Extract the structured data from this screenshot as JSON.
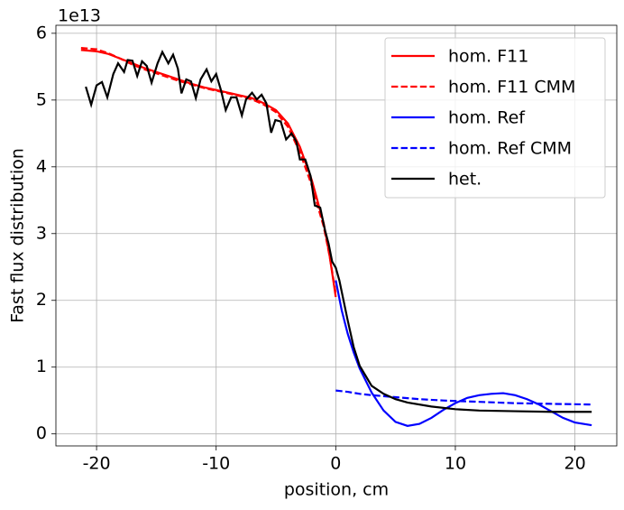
{
  "chart_data": {
    "type": "line",
    "xlabel": "position, cm",
    "ylabel": "Fast flux distribution",
    "offset_text": "1e13",
    "xlim": [
      -23.4,
      23.5
    ],
    "ylim": [
      -0.18,
      6.12
    ],
    "xticks": [
      -20,
      -10,
      0,
      10,
      20
    ],
    "yticks": [
      0,
      1,
      2,
      3,
      4,
      5,
      6
    ],
    "grid": true,
    "legend": "upper right",
    "series": [
      {
        "name": "hom. F11",
        "color": "#ff0000",
        "style": "solid",
        "x": [
          -21.3,
          -20,
          -19,
          -18,
          -17,
          -16,
          -15,
          -14,
          -13,
          -12,
          -11,
          -10,
          -9,
          -8,
          -7,
          -6,
          -5,
          -4,
          -3,
          -2,
          -1,
          -0.5,
          0
        ],
        "values": [
          5.75,
          5.73,
          5.69,
          5.62,
          5.55,
          5.48,
          5.42,
          5.36,
          5.3,
          5.24,
          5.19,
          5.15,
          5.11,
          5.07,
          5.03,
          4.95,
          4.85,
          4.65,
          4.3,
          3.8,
          3.15,
          2.65,
          2.05
        ]
      },
      {
        "name": "hom. F11 CMM",
        "color": "#ff0000",
        "style": "dashed",
        "x": [
          -21.3,
          -20,
          -19,
          -18,
          -17,
          -16,
          -15,
          -14,
          -13,
          -12,
          -11,
          -10,
          -9,
          -8,
          -7,
          -6,
          -5,
          -4,
          -3,
          -2,
          -1,
          -0.5,
          0
        ],
        "values": [
          5.78,
          5.76,
          5.7,
          5.62,
          5.53,
          5.46,
          5.4,
          5.34,
          5.28,
          5.23,
          5.18,
          5.14,
          5.1,
          5.06,
          5.01,
          4.93,
          4.82,
          4.6,
          4.22,
          3.72,
          3.1,
          2.65,
          2.1
        ]
      },
      {
        "name": "hom. Ref",
        "color": "#0000ff",
        "style": "solid",
        "x": [
          0,
          0.5,
          1,
          1.5,
          2,
          3,
          4,
          5,
          6,
          7,
          8,
          9,
          10,
          11,
          12,
          13,
          14,
          15,
          16,
          17,
          18,
          19,
          20,
          21.4
        ],
        "values": [
          2.3,
          1.85,
          1.5,
          1.22,
          0.98,
          0.62,
          0.35,
          0.18,
          0.12,
          0.15,
          0.24,
          0.36,
          0.46,
          0.54,
          0.58,
          0.6,
          0.61,
          0.58,
          0.52,
          0.44,
          0.34,
          0.24,
          0.17,
          0.13
        ]
      },
      {
        "name": "hom. Ref CMM",
        "color": "#0000ff",
        "style": "dashed",
        "x": [
          0,
          1,
          2,
          3,
          5,
          7,
          9,
          12,
          15,
          18,
          21.4
        ],
        "values": [
          0.65,
          0.63,
          0.6,
          0.58,
          0.55,
          0.52,
          0.5,
          0.48,
          0.46,
          0.45,
          0.44
        ]
      },
      {
        "name": "het.",
        "color": "#000000",
        "style": "solid",
        "x": [
          -20.9,
          -20.45,
          -20.0,
          -19.55,
          -19.1,
          -18.6,
          -18.2,
          -17.7,
          -17.4,
          -17.0,
          -16.6,
          -16.2,
          -15.8,
          -15.4,
          -14.9,
          -14.5,
          -14.0,
          -13.6,
          -13.2,
          -12.9,
          -12.5,
          -12.1,
          -11.7,
          -11.3,
          -10.8,
          -10.4,
          -10.0,
          -9.6,
          -9.2,
          -8.75,
          -8.3,
          -7.85,
          -7.5,
          -7.0,
          -6.6,
          -6.2,
          -5.8,
          -5.4,
          -5.05,
          -4.6,
          -4.15,
          -3.7,
          -3.3,
          -3.0,
          -2.55,
          -2.1,
          -1.75,
          -1.3,
          -0.9,
          -0.6,
          -0.3,
          0,
          0.3,
          1,
          1.5,
          2,
          3,
          4,
          5,
          6,
          8,
          10,
          12,
          15,
          18,
          21.4
        ],
        "values": [
          5.2,
          4.93,
          5.22,
          5.27,
          5.04,
          5.39,
          5.55,
          5.42,
          5.6,
          5.59,
          5.36,
          5.58,
          5.51,
          5.26,
          5.55,
          5.72,
          5.55,
          5.68,
          5.47,
          5.1,
          5.31,
          5.28,
          5.03,
          5.31,
          5.46,
          5.28,
          5.39,
          5.15,
          4.85,
          5.04,
          5.04,
          4.77,
          5.01,
          5.11,
          5.01,
          5.08,
          4.95,
          4.51,
          4.7,
          4.68,
          4.41,
          4.5,
          4.38,
          4.11,
          4.11,
          3.86,
          3.42,
          3.39,
          3.05,
          2.85,
          2.58,
          2.49,
          2.3,
          1.7,
          1.3,
          1.02,
          0.72,
          0.6,
          0.52,
          0.47,
          0.41,
          0.37,
          0.35,
          0.34,
          0.33,
          0.33
        ]
      }
    ]
  }
}
